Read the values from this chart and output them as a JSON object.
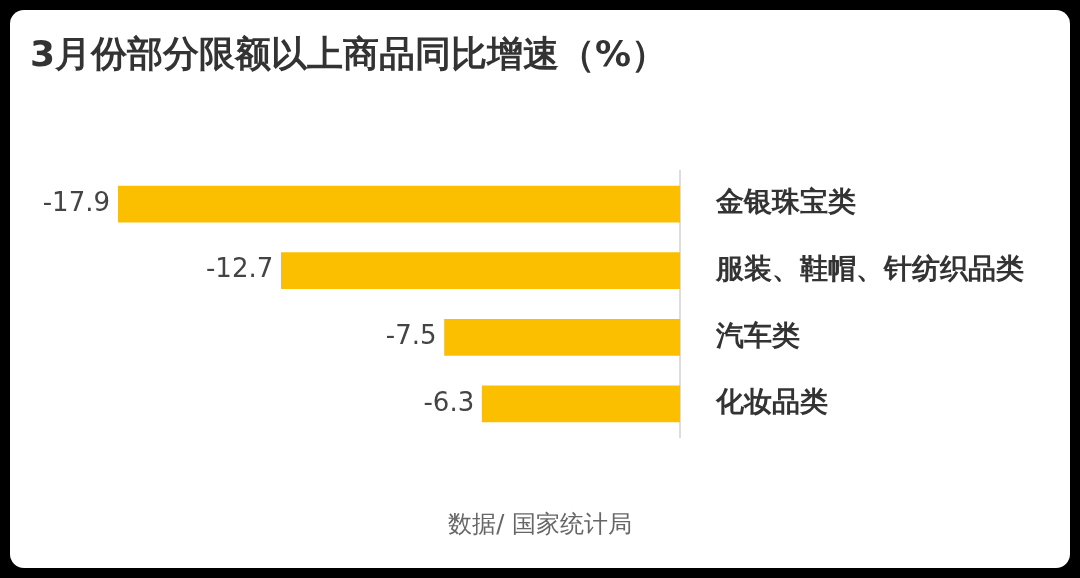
{
  "chart_data": {
    "type": "bar",
    "orientation": "horizontal",
    "title": "3月份部分限额以上商品同比增速（%）",
    "categories": [
      "金银珠宝类",
      "服装、鞋帽、针纺织品类",
      "汽车类",
      "化妆品类"
    ],
    "values": [
      -17.9,
      -12.7,
      -7.5,
      -6.3
    ],
    "color": "#fbbf00",
    "data_labels": true,
    "grid": false,
    "legend": false,
    "annotations": [
      "数据/ 国家统计局"
    ]
  }
}
